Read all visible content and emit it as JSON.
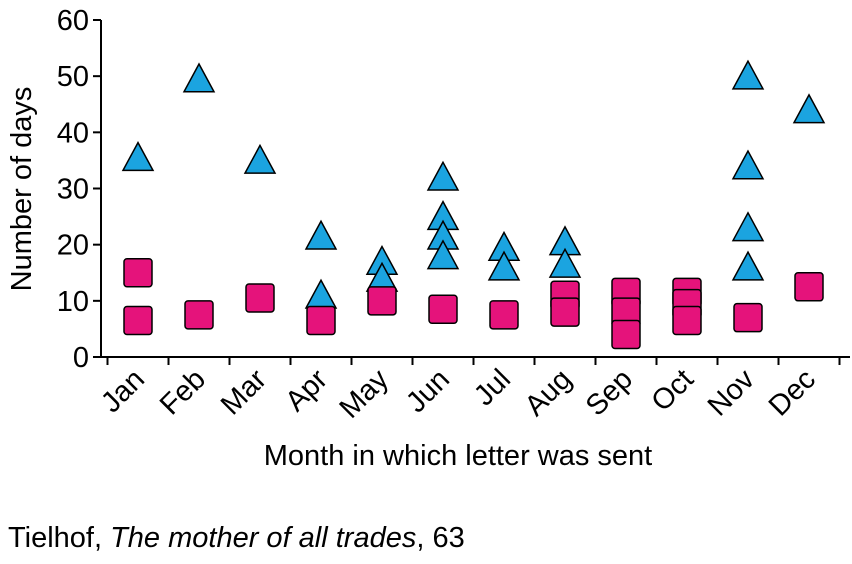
{
  "chart_data": {
    "type": "scatter",
    "ylabel": "Number of days",
    "xlabel": "Month in which letter was sent",
    "categories": [
      "Jan",
      "Feb",
      "Mar",
      "Apr",
      "May",
      "Jun",
      "Jul",
      "Aug",
      "Sep",
      "Oct",
      "Nov",
      "Dec"
    ],
    "yticks": [
      0,
      10,
      20,
      30,
      40,
      50,
      60
    ],
    "ylim": [
      0,
      60
    ],
    "grid": false,
    "series": [
      {
        "marker": "triangle",
        "color": "#1ba4e0",
        "points": [
          {
            "month": "Jan",
            "y": 35.5
          },
          {
            "month": "Feb",
            "y": 49.5
          },
          {
            "month": "Mar",
            "y": 35
          },
          {
            "month": "Apr",
            "y": 21.5
          },
          {
            "month": "Apr",
            "y": 11
          },
          {
            "month": "May",
            "y": 17
          },
          {
            "month": "May",
            "y": 14
          },
          {
            "month": "Jun",
            "y": 32
          },
          {
            "month": "Jun",
            "y": 25
          },
          {
            "month": "Jun",
            "y": 21.5
          },
          {
            "month": "Jun",
            "y": 18
          },
          {
            "month": "Jul",
            "y": 19.5
          },
          {
            "month": "Jul",
            "y": 16
          },
          {
            "month": "Aug",
            "y": 20.5
          },
          {
            "month": "Aug",
            "y": 16.5
          },
          {
            "month": "Nov",
            "y": 50
          },
          {
            "month": "Nov",
            "y": 34
          },
          {
            "month": "Nov",
            "y": 23
          },
          {
            "month": "Nov",
            "y": 16
          },
          {
            "month": "Dec",
            "y": 44
          }
        ]
      },
      {
        "marker": "square",
        "color": "#e5137b",
        "points": [
          {
            "month": "Jan",
            "y": 15
          },
          {
            "month": "Jan",
            "y": 6.5
          },
          {
            "month": "Feb",
            "y": 7.5
          },
          {
            "month": "Mar",
            "y": 10.5
          },
          {
            "month": "Apr",
            "y": 6.5
          },
          {
            "month": "May",
            "y": 10
          },
          {
            "month": "Jun",
            "y": 8.5
          },
          {
            "month": "Jul",
            "y": 7.5
          },
          {
            "month": "Aug",
            "y": 11
          },
          {
            "month": "Aug",
            "y": 8
          },
          {
            "month": "Sep",
            "y": 11.5
          },
          {
            "month": "Sep",
            "y": 8
          },
          {
            "month": "Sep",
            "y": 4
          },
          {
            "month": "Oct",
            "y": 11.5
          },
          {
            "month": "Oct",
            "y": 9.5
          },
          {
            "month": "Oct",
            "y": 6.5
          },
          {
            "month": "Nov",
            "y": 7
          },
          {
            "month": "Dec",
            "y": 12.5
          }
        ]
      }
    ]
  },
  "caption": {
    "author": "Tielhof, ",
    "title": "The mother of all trades",
    "page": ", 63"
  }
}
